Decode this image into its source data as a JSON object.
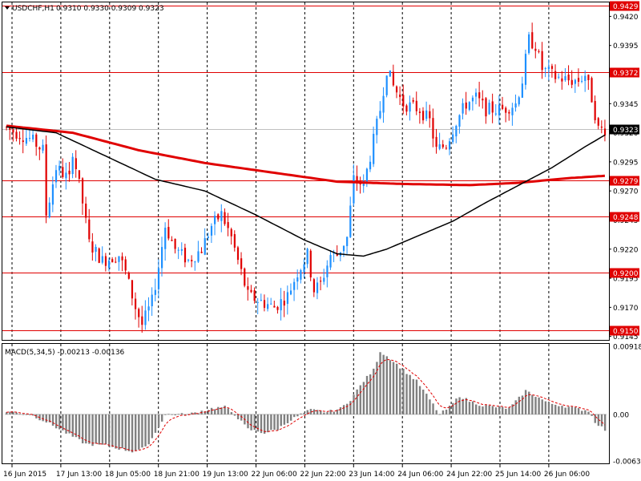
{
  "window": {
    "symbol_label": "USDCHF,H1",
    "ohlc": "0.9310 0.9330 0.9309 0.9323",
    "menu_icon": "triangle-down-icon"
  },
  "macd_panel": {
    "label": "MACD(5,34,5) -0.00213 -0.00136",
    "scale_labels": [
      "0.00918",
      "0.00",
      "-0.0063"
    ]
  },
  "colors": {
    "bull_candle": "#1e90ff",
    "bear_candle": "#e00000",
    "level_line": "#e00000",
    "ma_slow": "#e00000",
    "ma_fast": "#000000",
    "histogram": "#808080",
    "signal": "#e00000",
    "tag_bg": "#e00000",
    "current_tag_bg": "#000000"
  },
  "chart_data": {
    "type": "candlestick",
    "symbol": "USDCHF",
    "timeframe": "H1",
    "price_axis_ticks": [
      "0.9420",
      "0.9395",
      "0.9345",
      "0.9320",
      "0.9295",
      "0.9270",
      "0.9245",
      "0.9220",
      "0.9195",
      "0.9170",
      "0.9145"
    ],
    "price_range": [
      0.9142,
      0.9432
    ],
    "time_labels": [
      "16 Jun 2015",
      "17 Jun 13:00",
      "18 Jun 05:00",
      "18 Jun 21:00",
      "19 Jun 13:00",
      "22 Jun 06:00",
      "22 Jun 22:00",
      "23 Jun 14:00",
      "24 Jun 06:00",
      "24 Jun 22:00",
      "25 Jun 14:00",
      "26 Jun 06:00"
    ],
    "horizontal_levels": [
      {
        "value": 0.9429,
        "label": "0.9429"
      },
      {
        "value": 0.9372,
        "label": "0.9372"
      },
      {
        "value": 0.9279,
        "label": "0.9279"
      },
      {
        "value": 0.9248,
        "label": "0.9248"
      },
      {
        "value": 0.92,
        "label": "0.9200"
      },
      {
        "value": 0.915,
        "label": "0.9150"
      }
    ],
    "current_price": {
      "value": 0.9323,
      "label": "0.9323"
    },
    "price_path": [
      [
        0,
        0.9325
      ],
      [
        4,
        0.932
      ],
      [
        8,
        0.9315
      ],
      [
        12,
        0.9305
      ],
      [
        13,
        0.925
      ],
      [
        16,
        0.929
      ],
      [
        20,
        0.928
      ],
      [
        21,
        0.9305
      ],
      [
        24,
        0.926
      ],
      [
        26,
        0.9225
      ],
      [
        30,
        0.921
      ],
      [
        35,
        0.9215
      ],
      [
        37,
        0.92
      ],
      [
        40,
        0.917
      ],
      [
        42,
        0.9155
      ],
      [
        45,
        0.9175
      ],
      [
        47,
        0.9205
      ],
      [
        49,
        0.924
      ],
      [
        52,
        0.922
      ],
      [
        56,
        0.921
      ],
      [
        60,
        0.922
      ],
      [
        63,
        0.924
      ],
      [
        66,
        0.925
      ],
      [
        69,
        0.923
      ],
      [
        71,
        0.921
      ],
      [
        74,
        0.918
      ],
      [
        78,
        0.9175
      ],
      [
        82,
        0.917
      ],
      [
        86,
        0.918
      ],
      [
        89,
        0.92
      ],
      [
        92,
        0.9215
      ],
      [
        94,
        0.9185
      ],
      [
        96,
        0.919
      ],
      [
        99,
        0.9215
      ],
      [
        101,
        0.9215
      ],
      [
        104,
        0.923
      ],
      [
        106,
        0.928
      ],
      [
        109,
        0.9275
      ],
      [
        111,
        0.93
      ],
      [
        114,
        0.934
      ],
      [
        116,
        0.9375
      ],
      [
        118,
        0.936
      ],
      [
        121,
        0.9345
      ],
      [
        126,
        0.934
      ],
      [
        129,
        0.933
      ],
      [
        131,
        0.9305
      ],
      [
        134,
        0.931
      ],
      [
        137,
        0.933
      ],
      [
        140,
        0.9345
      ],
      [
        143,
        0.935
      ],
      [
        146,
        0.934
      ],
      [
        151,
        0.934
      ],
      [
        155,
        0.9345
      ],
      [
        157,
        0.9365
      ],
      [
        159,
        0.94
      ],
      [
        161,
        0.9395
      ],
      [
        163,
        0.9375
      ],
      [
        167,
        0.9368
      ],
      [
        171,
        0.9365
      ],
      [
        174,
        0.9365
      ],
      [
        176,
        0.937
      ],
      [
        178,
        0.935
      ],
      [
        180,
        0.9323
      ],
      [
        181,
        0.9323
      ]
    ],
    "moving_averages": [
      {
        "name": "",
        "color": "#e00000",
        "points": [
          [
            0,
            0.9326
          ],
          [
            20,
            0.932
          ],
          [
            40,
            0.9305
          ],
          [
            60,
            0.9294
          ],
          [
            80,
            0.9286
          ],
          [
            100,
            0.9278
          ],
          [
            120,
            0.9276
          ],
          [
            140,
            0.9275
          ],
          [
            155,
            0.9277
          ],
          [
            170,
            0.9281
          ],
          [
            181,
            0.9283
          ]
        ]
      },
      {
        "name": "",
        "color": "#000000",
        "points": [
          [
            0,
            0.9325
          ],
          [
            15,
            0.932
          ],
          [
            30,
            0.93
          ],
          [
            45,
            0.928
          ],
          [
            60,
            0.927
          ],
          [
            75,
            0.925
          ],
          [
            90,
            0.9228
          ],
          [
            100,
            0.9216
          ],
          [
            108,
            0.9214
          ],
          [
            115,
            0.922
          ],
          [
            125,
            0.9232
          ],
          [
            135,
            0.9244
          ],
          [
            145,
            0.926
          ],
          [
            155,
            0.9275
          ],
          [
            165,
            0.929
          ],
          [
            175,
            0.9308
          ],
          [
            181,
            0.9318
          ]
        ]
      }
    ],
    "macd": {
      "name": "MACD(5,34,5)",
      "value": -0.00213,
      "signal_value": -0.00136,
      "range": [
        -0.0066,
        0.0095
      ],
      "hist_path": [
        [
          0,
          0.0004
        ],
        [
          7,
          0.0
        ],
        [
          12,
          -0.001
        ],
        [
          18,
          -0.0025
        ],
        [
          24,
          -0.004
        ],
        [
          30,
          -0.0042
        ],
        [
          38,
          -0.005
        ],
        [
          42,
          -0.0045
        ],
        [
          45,
          -0.0025
        ],
        [
          48,
          0.0
        ],
        [
          55,
          0.0
        ],
        [
          62,
          0.0008
        ],
        [
          66,
          0.001
        ],
        [
          69,
          0.0
        ],
        [
          73,
          -0.002
        ],
        [
          78,
          -0.0025
        ],
        [
          82,
          -0.002
        ],
        [
          85,
          -0.001
        ],
        [
          89,
          0.0
        ],
        [
          92,
          0.0006
        ],
        [
          97,
          0.0003
        ],
        [
          101,
          0.0008
        ],
        [
          104,
          0.002
        ],
        [
          108,
          0.0045
        ],
        [
          111,
          0.006
        ],
        [
          113,
          0.0085
        ],
        [
          116,
          0.0075
        ],
        [
          120,
          0.006
        ],
        [
          124,
          0.0045
        ],
        [
          128,
          0.002
        ],
        [
          131,
          0.0
        ],
        [
          134,
          0.001
        ],
        [
          137,
          0.0025
        ],
        [
          140,
          0.0018
        ],
        [
          144,
          0.0012
        ],
        [
          148,
          0.001
        ],
        [
          152,
          0.0008
        ],
        [
          155,
          0.0022
        ],
        [
          157,
          0.0032
        ],
        [
          160,
          0.0025
        ],
        [
          164,
          0.0015
        ],
        [
          168,
          0.0012
        ],
        [
          172,
          0.0008
        ],
        [
          176,
          0.0005
        ],
        [
          178,
          -0.001
        ],
        [
          181,
          -0.0021
        ]
      ]
    }
  }
}
